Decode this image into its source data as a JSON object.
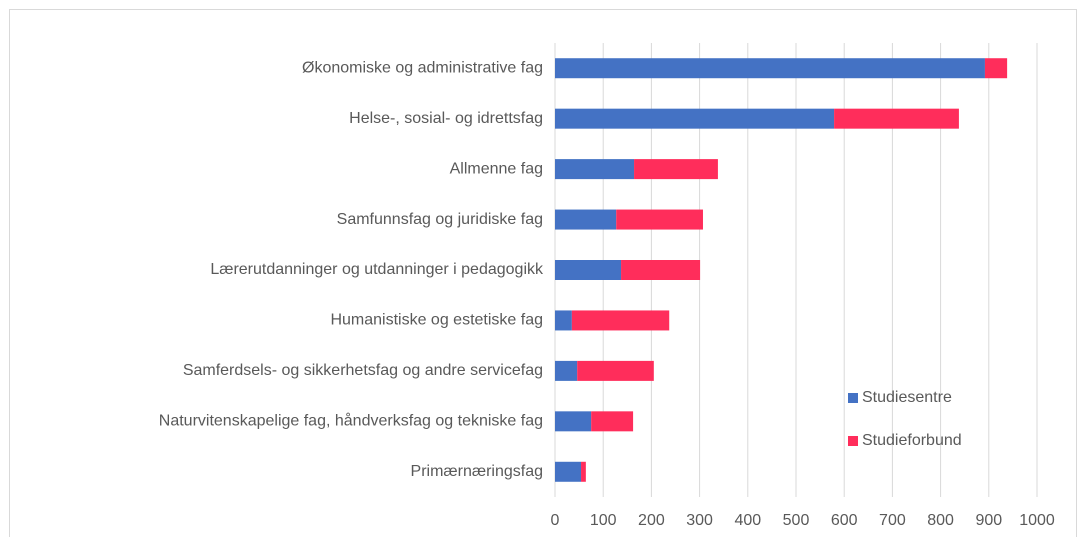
{
  "chart_data": {
    "type": "stacked_barh",
    "categories": [
      "Økonomiske og administrative fag",
      "Helse-, sosial- og idrettsfag",
      "Allmenne fag",
      "Samfunnsfag og juridiske fag",
      "Lærerutdanninger og utdanninger i pedagogikk",
      "Humanistiske og estetiske fag",
      "Samferdsels- og sikkerhetsfag og andre servicefag",
      "Naturvitenskapelige fag, håndverksfag og tekniske fag",
      "Primærnæringsfag"
    ],
    "series": [
      {
        "name": "Studiesentre",
        "color": "#4472c4",
        "values": [
          892,
          579,
          164,
          127,
          137,
          35,
          46,
          75,
          54
        ]
      },
      {
        "name": "Studieforbund",
        "color": "#ff2d5b",
        "values": [
          46,
          259,
          174,
          180,
          164,
          202,
          159,
          87,
          10
        ]
      }
    ],
    "xlim": [
      0,
      1000
    ],
    "xticks": [
      0,
      100,
      200,
      300,
      400,
      500,
      600,
      700,
      800,
      900,
      1000
    ],
    "grid": true,
    "legend": "lower right"
  }
}
